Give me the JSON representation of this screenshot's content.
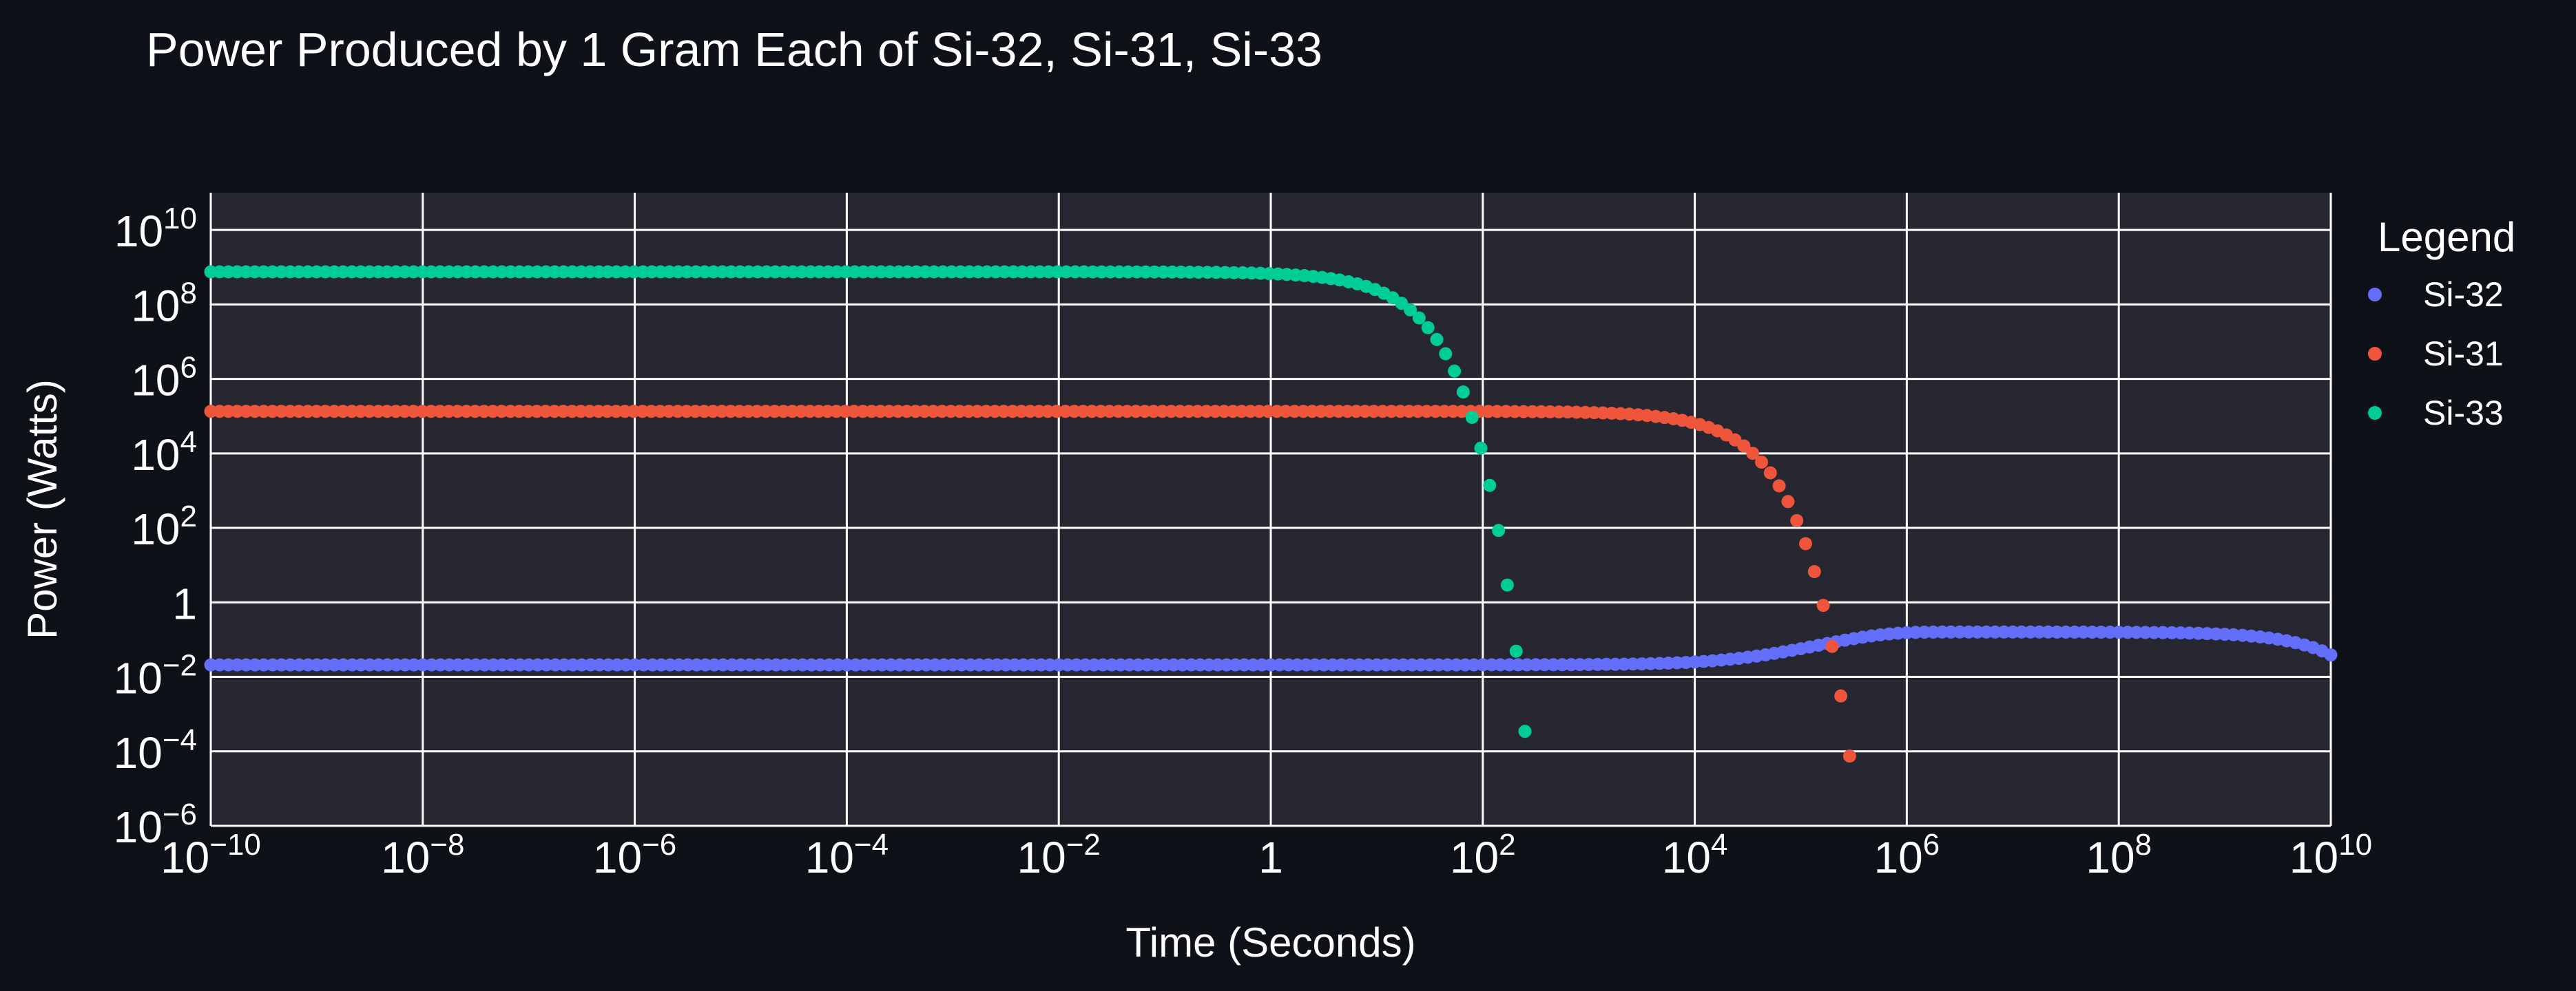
{
  "chart_data": {
    "type": "scatter",
    "title": "Power Produced by 1 Gram Each of Si-32, Si-31, Si-33",
    "xlabel": "Time (Seconds)",
    "ylabel": "Power (Watts)",
    "x_scale": "log",
    "y_scale": "log",
    "xlim": [
      1e-10,
      10000000000.0
    ],
    "ylim": [
      1e-06,
      100000000000.0
    ],
    "x_ticks": [
      {
        "label": "10",
        "exp": "−10",
        "value": 1e-10
      },
      {
        "label": "10",
        "exp": "−8",
        "value": 1e-08
      },
      {
        "label": "10",
        "exp": "−6",
        "value": 1e-06
      },
      {
        "label": "10",
        "exp": "−4",
        "value": 0.0001
      },
      {
        "label": "10",
        "exp": "−2",
        "value": 0.01
      },
      {
        "label": "1",
        "exp": "",
        "value": 1
      },
      {
        "label": "10",
        "exp": "2",
        "value": 100.0
      },
      {
        "label": "10",
        "exp": "4",
        "value": 10000.0
      },
      {
        "label": "10",
        "exp": "6",
        "value": 1000000.0
      },
      {
        "label": "10",
        "exp": "8",
        "value": 100000000.0
      },
      {
        "label": "10",
        "exp": "10",
        "value": 10000000000.0
      }
    ],
    "y_ticks": [
      {
        "label": "10",
        "exp": "−6",
        "value": 1e-06
      },
      {
        "label": "10",
        "exp": "−4",
        "value": 0.0001
      },
      {
        "label": "10",
        "exp": "−2",
        "value": 0.01
      },
      {
        "label": "1",
        "exp": "",
        "value": 1
      },
      {
        "label": "10",
        "exp": "2",
        "value": 100.0
      },
      {
        "label": "10",
        "exp": "4",
        "value": 10000.0
      },
      {
        "label": "10",
        "exp": "6",
        "value": 1000000.0
      },
      {
        "label": "10",
        "exp": "8",
        "value": 100000000.0
      },
      {
        "label": "10",
        "exp": "10",
        "value": 10000000000.0
      }
    ],
    "grid": true,
    "legend": {
      "title": "Legend",
      "placement": "right"
    },
    "series": [
      {
        "name": "Si-32",
        "color": "#636efa",
        "model": "secular_growth",
        "plateau_watts": 0.021,
        "peak_watts": 0.16,
        "growth_halflife_s": 230000.0,
        "decay_halflife_s": 4900000000.0,
        "x_range": [
          1e-10,
          10000000000.0
        ],
        "points_per_decade": 12
      },
      {
        "name": "Si-31",
        "color": "#ef553b",
        "model": "exponential_decay",
        "plateau_watts": 135000.0,
        "halflife_s": 9400,
        "x_range": [
          1e-10,
          350000.0
        ],
        "points_per_decade": 12
      },
      {
        "name": "Si-33",
        "color": "#00cc96",
        "model": "exponential_decay",
        "plateau_watts": 750000000.0,
        "halflife_s": 6.1,
        "x_range": [
          1e-10,
          250
        ],
        "points_per_decade": 12
      }
    ]
  }
}
